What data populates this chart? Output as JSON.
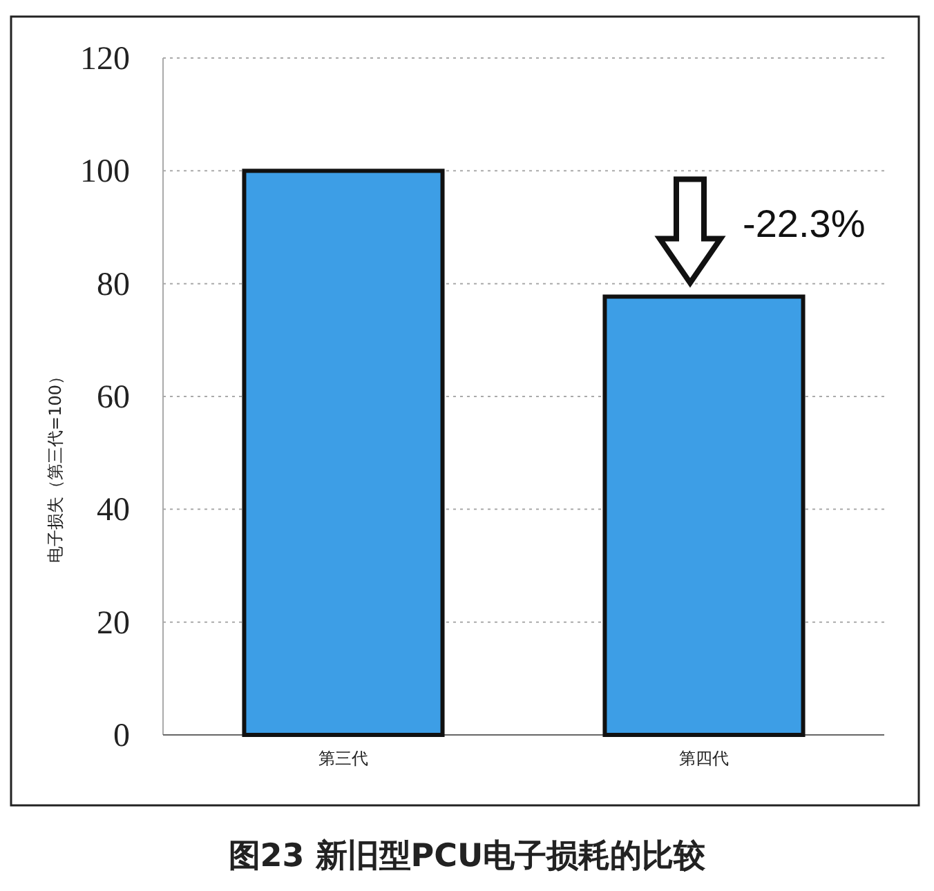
{
  "chart_data": {
    "type": "bar",
    "title": "图23 新旧型PCU电子损耗的比较",
    "ylabel": "电子损失（第三代=100）",
    "categories": [
      "第三代",
      "第四代"
    ],
    "values": [
      100,
      77.7
    ],
    "color": "#3d9ee6",
    "ylim": [
      0,
      120
    ],
    "yticks": [
      0,
      20,
      40,
      60,
      80,
      100,
      120
    ],
    "grid": "y",
    "annotations": [
      {
        "text": "-22.3%",
        "x": "第四代",
        "y": 77.7
      }
    ]
  }
}
